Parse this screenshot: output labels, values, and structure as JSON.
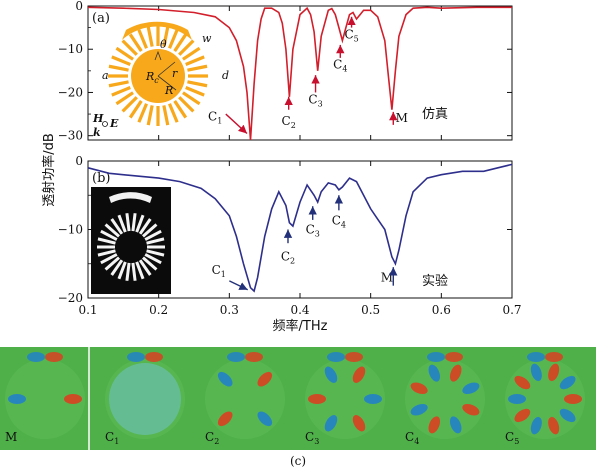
{
  "chart_data": [
    {
      "type": "line",
      "panel_label": "(a)",
      "series": [
        {
          "color": "#d21f2b",
          "x": [
            0.1,
            0.15,
            0.2,
            0.25,
            0.28,
            0.3,
            0.31,
            0.32,
            0.325,
            0.33,
            0.335,
            0.34,
            0.345,
            0.35,
            0.36,
            0.37,
            0.375,
            0.38,
            0.385,
            0.39,
            0.4,
            0.41,
            0.415,
            0.42,
            0.425,
            0.43,
            0.44,
            0.445,
            0.45,
            0.455,
            0.46,
            0.465,
            0.47,
            0.475,
            0.48,
            0.485,
            0.49,
            0.5,
            0.51,
            0.52,
            0.525,
            0.53,
            0.535,
            0.54,
            0.55,
            0.56,
            0.58,
            0.6,
            0.65,
            0.7
          ],
          "y": [
            -0.3,
            -0.5,
            -0.8,
            -1.5,
            -2.5,
            -5,
            -8,
            -14,
            -20,
            -31,
            -18,
            -8,
            -3,
            -0.5,
            -0.5,
            -1.5,
            -4,
            -10,
            -21,
            -10,
            -2,
            -0.5,
            -2,
            -6,
            -15,
            -7,
            -1,
            -0.6,
            -2,
            -5,
            -8,
            -5,
            -2,
            -1.5,
            -3,
            -2,
            -1,
            -1,
            -2.5,
            -8,
            -16,
            -24,
            -15,
            -7,
            -2,
            -0.5,
            -0.3,
            -0.5,
            -0.3,
            -0.3
          ]
        }
      ],
      "ylim": [
        -31,
        0
      ],
      "yticks": [
        "0",
        "−10",
        "−20",
        "−30"
      ],
      "annotations": [
        {
          "text": "C",
          "sub": "1",
          "x": 0.28,
          "y": -26.5
        },
        {
          "text": "C",
          "sub": "2",
          "x": 0.384,
          "y": -27.5
        },
        {
          "text": "C",
          "sub": "3",
          "x": 0.422,
          "y": -22.5
        },
        {
          "text": "C",
          "sub": "4",
          "x": 0.457,
          "y": -14.5
        },
        {
          "text": "C",
          "sub": "5",
          "x": 0.473,
          "y": -7.5
        },
        {
          "text": "M",
          "x": 0.544,
          "y": -26.8
        }
      ],
      "note": "仿真"
    },
    {
      "type": "line",
      "panel_label": "(b)",
      "series": [
        {
          "color": "#2e2f8c",
          "x": [
            0.1,
            0.13,
            0.17,
            0.2,
            0.23,
            0.26,
            0.28,
            0.3,
            0.31,
            0.32,
            0.33,
            0.335,
            0.34,
            0.35,
            0.36,
            0.37,
            0.38,
            0.385,
            0.39,
            0.4,
            0.41,
            0.42,
            0.425,
            0.43,
            0.44,
            0.45,
            0.455,
            0.46,
            0.47,
            0.48,
            0.49,
            0.5,
            0.51,
            0.52,
            0.53,
            0.535,
            0.54,
            0.55,
            0.56,
            0.58,
            0.6,
            0.63,
            0.66,
            0.68,
            0.7
          ],
          "y": [
            -1,
            -1.8,
            -2.2,
            -2.5,
            -3,
            -4,
            -5.5,
            -8,
            -11,
            -15,
            -18.5,
            -19,
            -17,
            -11,
            -7,
            -4.5,
            -6.5,
            -9,
            -9.5,
            -6,
            -3.5,
            -5,
            -6,
            -4.5,
            -3.2,
            -3.5,
            -4.2,
            -3.8,
            -2.5,
            -3,
            -5,
            -7,
            -8.5,
            -10,
            -14,
            -15,
            -13,
            -8,
            -4.5,
            -2.5,
            -2,
            -1.5,
            -1.5,
            -1,
            -0.5
          ]
        }
      ],
      "ylim": [
        -20,
        0
      ],
      "yticks": [
        "0",
        "−10",
        "−20"
      ],
      "xlim": [
        0.1,
        0.7
      ],
      "xticks": [
        "0.1",
        "0.2",
        "0.3",
        "0.4",
        "0.5",
        "0.6",
        "0.7"
      ],
      "xlabel": "频率/THz",
      "annotations": [
        {
          "text": "C",
          "sub": "1",
          "x": 0.285,
          "y": -16.5
        },
        {
          "text": "C",
          "sub": "2",
          "x": 0.383,
          "y": -14.5
        },
        {
          "text": "C",
          "sub": "3",
          "x": 0.418,
          "y": -10.6
        },
        {
          "text": "C",
          "sub": "4",
          "x": 0.455,
          "y": -9.3
        },
        {
          "text": "M",
          "x": 0.523,
          "y": -17.6
        }
      ],
      "note": "实验"
    }
  ],
  "ylabel": "透射功率/dB",
  "inset_a_labels": {
    "theta": "θ",
    "w": "w",
    "a": "a",
    "d": "d",
    "rc": "R",
    "rc_sub": "c",
    "r": "r",
    "R": "R",
    "H": "H",
    "E": "E",
    "k": "k"
  },
  "field_maps": {
    "labels": [
      {
        "text": "M"
      },
      {
        "text": "C",
        "sub": "1"
      },
      {
        "text": "C",
        "sub": "2"
      },
      {
        "text": "C",
        "sub": "3"
      },
      {
        "text": "C",
        "sub": "4"
      },
      {
        "text": "C",
        "sub": "5"
      }
    ],
    "caption": "(c)",
    "colors": {
      "background": "#4fb04a",
      "hot": "#e23a1f",
      "cold": "#1f7fd0"
    }
  }
}
